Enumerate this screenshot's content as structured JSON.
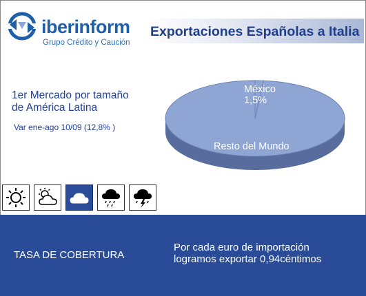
{
  "brand": {
    "name": "iberinform",
    "tagline": "Grupo Crédito y Caución",
    "color": "#1f5ea8"
  },
  "title": "Exportaciones Españolas a Italia",
  "market": {
    "line1": "1er Mercado por tamaño",
    "line2": "de América Latina",
    "variation": "Var ene-ago 10/09 (12,8% )"
  },
  "weather_icons": [
    {
      "name": "sun-icon",
      "selected": false
    },
    {
      "name": "sun-cloud-icon",
      "selected": false
    },
    {
      "name": "cloud-icon",
      "selected": true
    },
    {
      "name": "rain-cloud-icon",
      "selected": false
    },
    {
      "name": "storm-cloud-icon",
      "selected": false
    }
  ],
  "chart_data": {
    "type": "pie",
    "title": "",
    "slices": [
      {
        "label": "México",
        "value": 1.5,
        "value_label": "1,5%"
      },
      {
        "label": "Resto del Mundo",
        "value": 98.5,
        "value_label": ""
      }
    ],
    "colors": {
      "slice": "#8fa6d4",
      "side": "#586d9e",
      "edge": "#6b82b5"
    },
    "three_d": true
  },
  "footer": {
    "left": "TASA DE COBERTURA",
    "right_line1": "Por cada euro de importación",
    "right_line2": "logramos exportar 0,94céntimos",
    "background": "#2a4b97"
  }
}
